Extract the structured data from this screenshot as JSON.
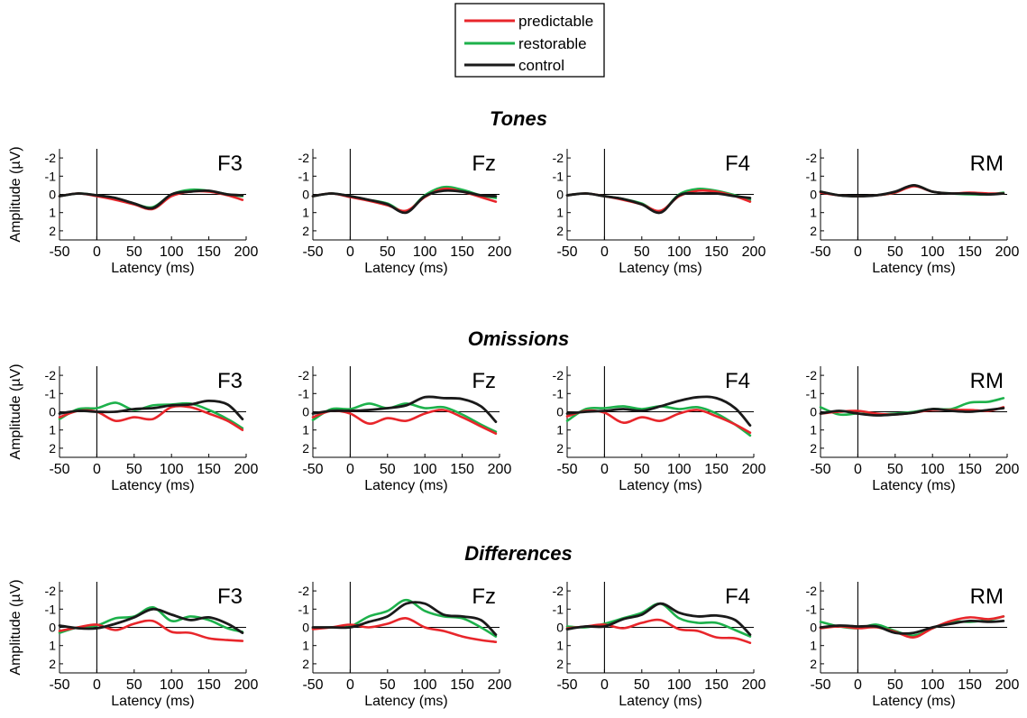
{
  "legend": {
    "items": [
      {
        "label": "predictable",
        "color": "#e8262b"
      },
      {
        "label": "restorable",
        "color": "#1db14b"
      },
      {
        "label": "control",
        "color": "#1a1a1a"
      }
    ]
  },
  "rows": [
    {
      "title": "Tones"
    },
    {
      "title": "Omissions"
    },
    {
      "title": "Differences"
    }
  ],
  "axis": {
    "ylabel": "Amplitude (µV)",
    "xlabel": "Latency (ms)",
    "xticks": [
      "-50",
      "0",
      "50",
      "100",
      "150",
      "200"
    ],
    "yticks": [
      "-2",
      "-1",
      "0",
      "1",
      "2"
    ]
  },
  "chart_data": [
    {
      "type": "line",
      "row": "Tones",
      "channel": "F3",
      "xlim": [
        -50,
        200
      ],
      "ylim": [
        -2.5,
        2.5
      ],
      "y_inverted": true,
      "grid": false,
      "x": [
        -50,
        -25,
        0,
        25,
        50,
        75,
        100,
        125,
        150,
        175,
        195
      ],
      "series": [
        {
          "name": "predictable",
          "values": [
            0.1,
            -0.05,
            0.1,
            0.3,
            0.55,
            0.8,
            0.1,
            -0.15,
            -0.15,
            0.05,
            0.3
          ]
        },
        {
          "name": "restorable",
          "values": [
            0.1,
            -0.05,
            0.05,
            0.2,
            0.5,
            0.7,
            0.0,
            -0.25,
            -0.2,
            0.0,
            0.1
          ]
        },
        {
          "name": "control",
          "values": [
            0.1,
            -0.05,
            0.05,
            0.2,
            0.5,
            0.75,
            0.0,
            -0.15,
            -0.2,
            0.0,
            0.05
          ]
        }
      ]
    },
    {
      "type": "line",
      "row": "Tones",
      "channel": "Fz",
      "xlim": [
        -50,
        200
      ],
      "ylim": [
        -2.5,
        2.5
      ],
      "y_inverted": true,
      "grid": false,
      "x": [
        -50,
        -25,
        0,
        25,
        50,
        75,
        100,
        125,
        150,
        175,
        195
      ],
      "series": [
        {
          "name": "predictable",
          "values": [
            0.1,
            -0.05,
            0.15,
            0.35,
            0.6,
            0.9,
            0.15,
            -0.3,
            -0.15,
            0.15,
            0.4
          ]
        },
        {
          "name": "restorable",
          "values": [
            0.1,
            -0.05,
            0.1,
            0.3,
            0.5,
            0.95,
            0.05,
            -0.4,
            -0.25,
            0.05,
            0.2
          ]
        },
        {
          "name": "control",
          "values": [
            0.1,
            -0.05,
            0.1,
            0.3,
            0.55,
            1.0,
            0.1,
            -0.2,
            -0.15,
            0.05,
            0.1
          ]
        }
      ]
    },
    {
      "type": "line",
      "row": "Tones",
      "channel": "F4",
      "xlim": [
        -50,
        200
      ],
      "ylim": [
        -2.5,
        2.5
      ],
      "y_inverted": true,
      "grid": false,
      "x": [
        -50,
        -25,
        0,
        25,
        50,
        75,
        100,
        125,
        150,
        175,
        195
      ],
      "series": [
        {
          "name": "predictable",
          "values": [
            0.05,
            -0.05,
            0.1,
            0.3,
            0.55,
            0.9,
            0.1,
            -0.2,
            -0.15,
            0.1,
            0.4
          ]
        },
        {
          "name": "restorable",
          "values": [
            0.05,
            -0.05,
            0.1,
            0.25,
            0.5,
            0.95,
            0.0,
            -0.3,
            -0.2,
            0.05,
            0.3
          ]
        },
        {
          "name": "control",
          "values": [
            0.05,
            -0.05,
            0.1,
            0.25,
            0.55,
            1.0,
            0.05,
            -0.05,
            -0.05,
            0.1,
            0.2
          ]
        }
      ]
    },
    {
      "type": "line",
      "row": "Tones",
      "channel": "RM",
      "xlim": [
        -50,
        200
      ],
      "ylim": [
        -2.5,
        2.5
      ],
      "y_inverted": true,
      "grid": false,
      "x": [
        -50,
        -25,
        0,
        25,
        50,
        75,
        100,
        125,
        150,
        175,
        195
      ],
      "series": [
        {
          "name": "predictable",
          "values": [
            -0.1,
            0.05,
            0.1,
            0.05,
            -0.1,
            -0.45,
            -0.15,
            -0.05,
            -0.1,
            -0.05,
            -0.05
          ]
        },
        {
          "name": "restorable",
          "values": [
            -0.15,
            0.05,
            0.1,
            0.05,
            -0.1,
            -0.5,
            -0.15,
            -0.05,
            0.0,
            0.0,
            -0.1
          ]
        },
        {
          "name": "control",
          "values": [
            -0.15,
            0.05,
            0.1,
            0.05,
            -0.15,
            -0.5,
            -0.15,
            -0.05,
            -0.05,
            0.0,
            -0.05
          ]
        }
      ]
    },
    {
      "type": "line",
      "row": "Omissions",
      "channel": "F3",
      "xlim": [
        -50,
        200
      ],
      "ylim": [
        -2.5,
        2.5
      ],
      "y_inverted": true,
      "grid": false,
      "x": [
        -50,
        -25,
        0,
        25,
        50,
        75,
        100,
        125,
        150,
        175,
        195
      ],
      "series": [
        {
          "name": "predictable",
          "values": [
            0.3,
            -0.05,
            0.0,
            0.5,
            0.3,
            0.4,
            -0.25,
            -0.25,
            0.1,
            0.5,
            1.0
          ]
        },
        {
          "name": "restorable",
          "values": [
            0.4,
            -0.15,
            -0.2,
            -0.5,
            -0.1,
            -0.35,
            -0.4,
            -0.45,
            -0.1,
            0.4,
            0.9
          ]
        },
        {
          "name": "control",
          "values": [
            0.1,
            -0.05,
            0.0,
            0.0,
            -0.15,
            -0.2,
            -0.35,
            -0.4,
            -0.6,
            -0.4,
            0.4
          ]
        }
      ]
    },
    {
      "type": "line",
      "row": "Omissions",
      "channel": "Fz",
      "xlim": [
        -50,
        200
      ],
      "ylim": [
        -2.5,
        2.5
      ],
      "y_inverted": true,
      "grid": false,
      "x": [
        -50,
        -25,
        0,
        25,
        50,
        75,
        100,
        125,
        150,
        175,
        195
      ],
      "series": [
        {
          "name": "predictable",
          "values": [
            0.3,
            -0.05,
            0.1,
            0.65,
            0.35,
            0.5,
            0.1,
            -0.1,
            0.3,
            0.8,
            1.2
          ]
        },
        {
          "name": "restorable",
          "values": [
            0.45,
            -0.15,
            -0.15,
            -0.45,
            -0.2,
            -0.45,
            -0.2,
            -0.25,
            0.15,
            0.7,
            1.1
          ]
        },
        {
          "name": "control",
          "values": [
            0.1,
            -0.05,
            -0.05,
            -0.1,
            -0.2,
            -0.35,
            -0.8,
            -0.75,
            -0.7,
            -0.3,
            0.55
          ]
        }
      ]
    },
    {
      "type": "line",
      "row": "Omissions",
      "channel": "F4",
      "xlim": [
        -50,
        200
      ],
      "ylim": [
        -2.5,
        2.5
      ],
      "y_inverted": true,
      "grid": false,
      "x": [
        -50,
        -25,
        0,
        25,
        50,
        75,
        100,
        125,
        150,
        175,
        195
      ],
      "series": [
        {
          "name": "predictable",
          "values": [
            0.25,
            -0.05,
            0.05,
            0.6,
            0.3,
            0.5,
            0.1,
            -0.1,
            0.25,
            0.7,
            1.15
          ]
        },
        {
          "name": "restorable",
          "values": [
            0.5,
            -0.15,
            -0.2,
            -0.3,
            -0.15,
            -0.3,
            -0.15,
            -0.25,
            0.1,
            0.7,
            1.3
          ]
        },
        {
          "name": "control",
          "values": [
            0.1,
            0.0,
            -0.05,
            -0.15,
            -0.05,
            -0.3,
            -0.6,
            -0.8,
            -0.75,
            -0.2,
            0.75
          ]
        }
      ]
    },
    {
      "type": "line",
      "row": "Omissions",
      "channel": "RM",
      "xlim": [
        -50,
        200
      ],
      "ylim": [
        -2.5,
        2.5
      ],
      "y_inverted": true,
      "grid": false,
      "x": [
        -50,
        -25,
        0,
        25,
        50,
        75,
        100,
        125,
        150,
        175,
        195
      ],
      "series": [
        {
          "name": "predictable",
          "values": [
            0.1,
            0.0,
            -0.05,
            0.1,
            0.15,
            0.05,
            -0.1,
            -0.1,
            -0.1,
            -0.05,
            -0.25
          ]
        },
        {
          "name": "restorable",
          "values": [
            -0.25,
            0.15,
            0.1,
            0.15,
            0.1,
            0.0,
            -0.15,
            -0.15,
            -0.5,
            -0.55,
            -0.75
          ]
        },
        {
          "name": "control",
          "values": [
            0.1,
            -0.05,
            0.1,
            0.2,
            0.15,
            0.05,
            -0.15,
            -0.05,
            0.0,
            -0.1,
            -0.2
          ]
        }
      ]
    },
    {
      "type": "line",
      "row": "Differences",
      "channel": "F3",
      "xlim": [
        -50,
        200
      ],
      "ylim": [
        -2.5,
        2.5
      ],
      "y_inverted": true,
      "grid": false,
      "x": [
        -50,
        -25,
        0,
        25,
        50,
        75,
        100,
        125,
        150,
        175,
        195
      ],
      "series": [
        {
          "name": "predictable",
          "values": [
            0.2,
            0.0,
            -0.15,
            0.15,
            -0.2,
            -0.35,
            0.25,
            0.3,
            0.6,
            0.7,
            0.75
          ]
        },
        {
          "name": "restorable",
          "values": [
            0.3,
            0.0,
            -0.1,
            -0.5,
            -0.6,
            -1.1,
            -0.35,
            -0.6,
            -0.4,
            0.05,
            0.25
          ]
        },
        {
          "name": "control",
          "values": [
            -0.1,
            0.05,
            0.05,
            -0.2,
            -0.55,
            -1.0,
            -0.7,
            -0.4,
            -0.55,
            -0.2,
            0.3
          ]
        }
      ]
    },
    {
      "type": "line",
      "row": "Differences",
      "channel": "Fz",
      "xlim": [
        -50,
        200
      ],
      "ylim": [
        -2.5,
        2.5
      ],
      "y_inverted": true,
      "grid": false,
      "x": [
        -50,
        -25,
        0,
        25,
        50,
        75,
        100,
        125,
        150,
        175,
        195
      ],
      "series": [
        {
          "name": "predictable",
          "values": [
            0.1,
            0.0,
            -0.15,
            0.0,
            -0.2,
            -0.5,
            0.0,
            0.2,
            0.5,
            0.7,
            0.8
          ]
        },
        {
          "name": "restorable",
          "values": [
            0.05,
            0.0,
            -0.05,
            -0.6,
            -0.9,
            -1.5,
            -0.9,
            -0.6,
            -0.5,
            0.0,
            0.5
          ]
        },
        {
          "name": "control",
          "values": [
            0.0,
            0.0,
            0.0,
            -0.3,
            -0.6,
            -1.3,
            -1.3,
            -0.7,
            -0.6,
            -0.4,
            0.4
          ]
        }
      ]
    },
    {
      "type": "line",
      "row": "Differences",
      "channel": "F4",
      "xlim": [
        -50,
        200
      ],
      "ylim": [
        -2.5,
        2.5
      ],
      "y_inverted": true,
      "grid": false,
      "x": [
        -50,
        -25,
        0,
        25,
        50,
        75,
        100,
        125,
        150,
        175,
        195
      ],
      "series": [
        {
          "name": "predictable",
          "values": [
            0.05,
            -0.05,
            -0.15,
            0.05,
            -0.25,
            -0.4,
            0.1,
            0.2,
            0.55,
            0.6,
            0.85
          ]
        },
        {
          "name": "restorable",
          "values": [
            -0.05,
            0.0,
            -0.2,
            -0.5,
            -0.8,
            -1.3,
            -0.5,
            -0.25,
            -0.25,
            0.15,
            0.5
          ]
        },
        {
          "name": "control",
          "values": [
            0.1,
            -0.05,
            -0.05,
            -0.45,
            -0.7,
            -1.3,
            -0.8,
            -0.6,
            -0.65,
            -0.4,
            0.4
          ]
        }
      ]
    },
    {
      "type": "line",
      "row": "Differences",
      "channel": "RM",
      "xlim": [
        -50,
        200
      ],
      "ylim": [
        -2.5,
        2.5
      ],
      "y_inverted": true,
      "grid": false,
      "x": [
        -50,
        -25,
        0,
        25,
        50,
        75,
        100,
        125,
        150,
        175,
        195
      ],
      "series": [
        {
          "name": "predictable",
          "values": [
            0.05,
            -0.05,
            0.05,
            0.0,
            0.25,
            0.55,
            0.05,
            -0.35,
            -0.55,
            -0.45,
            -0.6
          ]
        },
        {
          "name": "restorable",
          "values": [
            -0.3,
            -0.05,
            0.05,
            -0.15,
            0.2,
            0.45,
            0.05,
            -0.3,
            -0.3,
            -0.4,
            -0.6
          ]
        },
        {
          "name": "control",
          "values": [
            0.0,
            -0.1,
            -0.05,
            -0.05,
            0.3,
            0.3,
            0.0,
            -0.2,
            -0.35,
            -0.3,
            -0.35
          ]
        }
      ]
    }
  ]
}
